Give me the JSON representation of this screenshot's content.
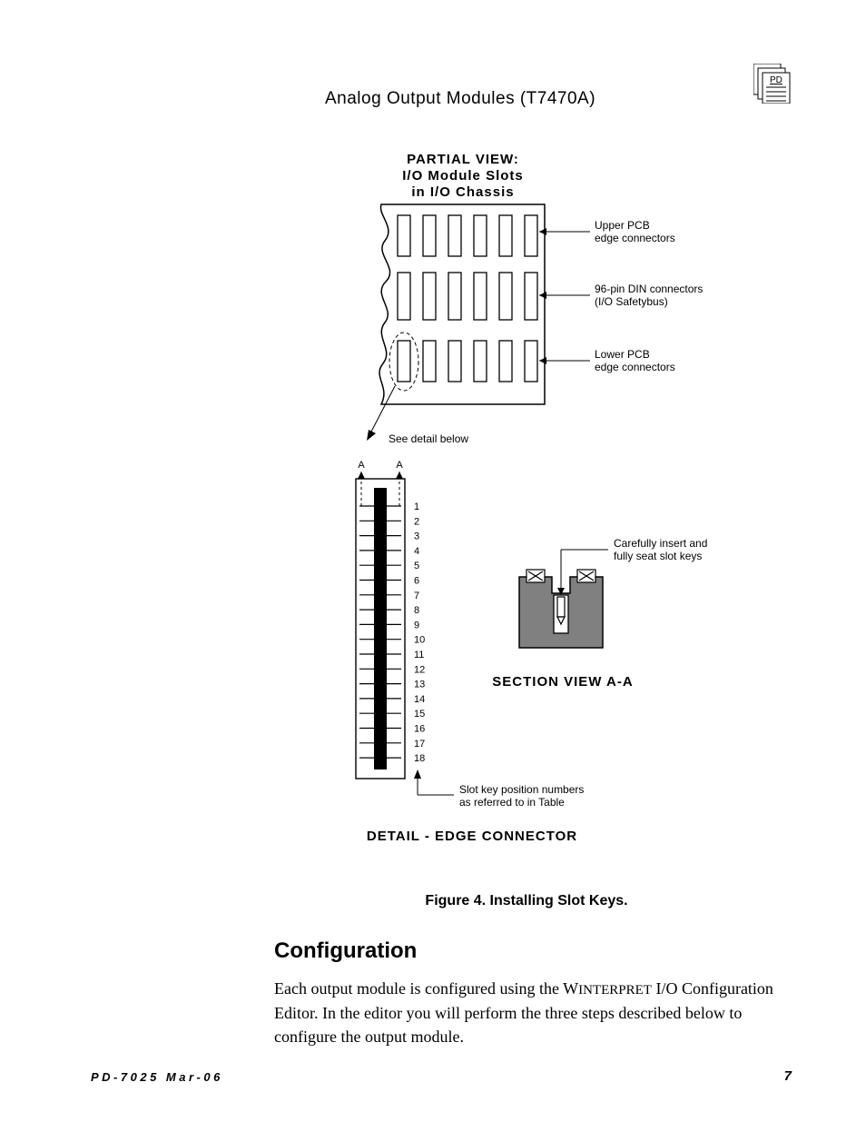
{
  "header": {
    "title": "Analog  Output  Modules (T7470A)",
    "pd_label": "PD"
  },
  "figure": {
    "partial_view_title_1": "PARTIAL VIEW:",
    "partial_view_title_2": "I/O Module Slots",
    "partial_view_title_3": "in I/O Chassis",
    "label_upper": "Upper PCB\nedge connectors",
    "label_din": "96-pin DIN connectors\n(I/O Safetybus)",
    "label_lower": "Lower PCB\nedge connectors",
    "see_detail": "See detail below",
    "section_view_label": "SECTION VIEW    A-A",
    "insert_label": "Carefully insert and\nfully seat slot keys",
    "slot_key_label": "Slot key position numbers\nas referred to in Table",
    "detail_label": "DETAIL - EDGE CONNECTOR",
    "slot_numbers": [
      "1",
      "2",
      "3",
      "4",
      "5",
      "6",
      "7",
      "8",
      "9",
      "10",
      "11",
      "12",
      "13",
      "14",
      "15",
      "16",
      "17",
      "18"
    ],
    "aa_label": "A",
    "caption": "Figure 4.  Installing Slot Keys."
  },
  "section": {
    "heading": "Configuration",
    "para_pre": "Each output module is configured using the W",
    "para_sc": "INTERPRET",
    "para_post": " I/O Configuration Editor.  In the editor you will perform the three steps described below to configure the output module."
  },
  "footer": {
    "left": "PD-7025 Mar-06",
    "page_no": "7"
  },
  "colors": {
    "text": "#000000",
    "bg": "#ffffff",
    "hatch_fill": "#808080"
  }
}
